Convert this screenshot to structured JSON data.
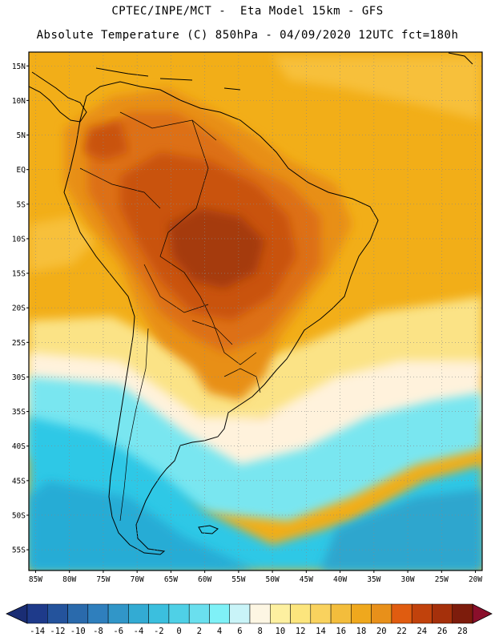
{
  "header": {
    "title_line1": "CPTEC/INPE/MCT -  Eta Model 15km - GFS",
    "title_line2": "Absolute Temperature (C) 850hPa - 04/09/2020 12UTC fct=180h"
  },
  "map": {
    "variable": "Absolute Temperature (C) 850hPa",
    "lon_range": [
      -86,
      -19
    ],
    "lat_range": [
      -58,
      17
    ],
    "lat_ticks": [
      "15N",
      "10N",
      "5N",
      "EQ",
      "5S",
      "10S",
      "15S",
      "20S",
      "25S",
      "30S",
      "35S",
      "40S",
      "45S",
      "50S",
      "55S"
    ],
    "lat_tick_values": [
      15,
      10,
      5,
      0,
      -5,
      -10,
      -15,
      -20,
      -25,
      -30,
      -35,
      -40,
      -45,
      -50,
      -55
    ],
    "lon_ticks": [
      "85W",
      "80W",
      "75W",
      "70W",
      "65W",
      "60W",
      "55W",
      "50W",
      "45W",
      "40W",
      "35W",
      "30W",
      "25W",
      "20W"
    ],
    "lon_tick_values": [
      -85,
      -80,
      -75,
      -70,
      -65,
      -60,
      -55,
      -50,
      -45,
      -40,
      -35,
      -30,
      -25,
      -20
    ],
    "field_bands": [
      {
        "level": "6-8",
        "color": "#fff2dc"
      },
      {
        "level": "10-12",
        "color": "#fbe386"
      },
      {
        "level": "14-16",
        "color": "#f7c03a"
      },
      {
        "level": "16-18",
        "color": "#f2ae18"
      },
      {
        "level": "18-20",
        "color": "#e88f14"
      },
      {
        "level": "20-22",
        "color": "#dd6f12"
      },
      {
        "level": "22-24",
        "color": "#c9520f"
      },
      {
        "level": "24-26",
        "color": "#a53a0d"
      }
    ],
    "cold_colors": {
      "2-4": "#2fc8e6",
      "4-6": "#79e6f0",
      "-2-0": "#27acd5",
      "-4--2": "#2fa6ce"
    }
  },
  "colorbar": {
    "labels": [
      "-14",
      "-12",
      "-10",
      "-8",
      "-6",
      "-4",
      "-2",
      "0",
      "2",
      "4",
      "6",
      "8",
      "10",
      "12",
      "14",
      "16",
      "18",
      "20",
      "22",
      "24",
      "26",
      "28"
    ],
    "colors": [
      "#1e3a8a",
      "#24539c",
      "#2a6aac",
      "#2f7fbd",
      "#3196c8",
      "#33abd3",
      "#3bbfde",
      "#4fd0e6",
      "#6adfee",
      "#7ff1f7",
      "#c9f4f8",
      "#fdf6e3",
      "#fdf0a0",
      "#fce57d",
      "#f9d25e",
      "#f3bd3c",
      "#efa81d",
      "#e8901a",
      "#e05c10",
      "#c1420c",
      "#a5300b",
      "#7d1c0c"
    ],
    "under_color": "#1a2d74",
    "over_color": "#8a0f2b"
  }
}
